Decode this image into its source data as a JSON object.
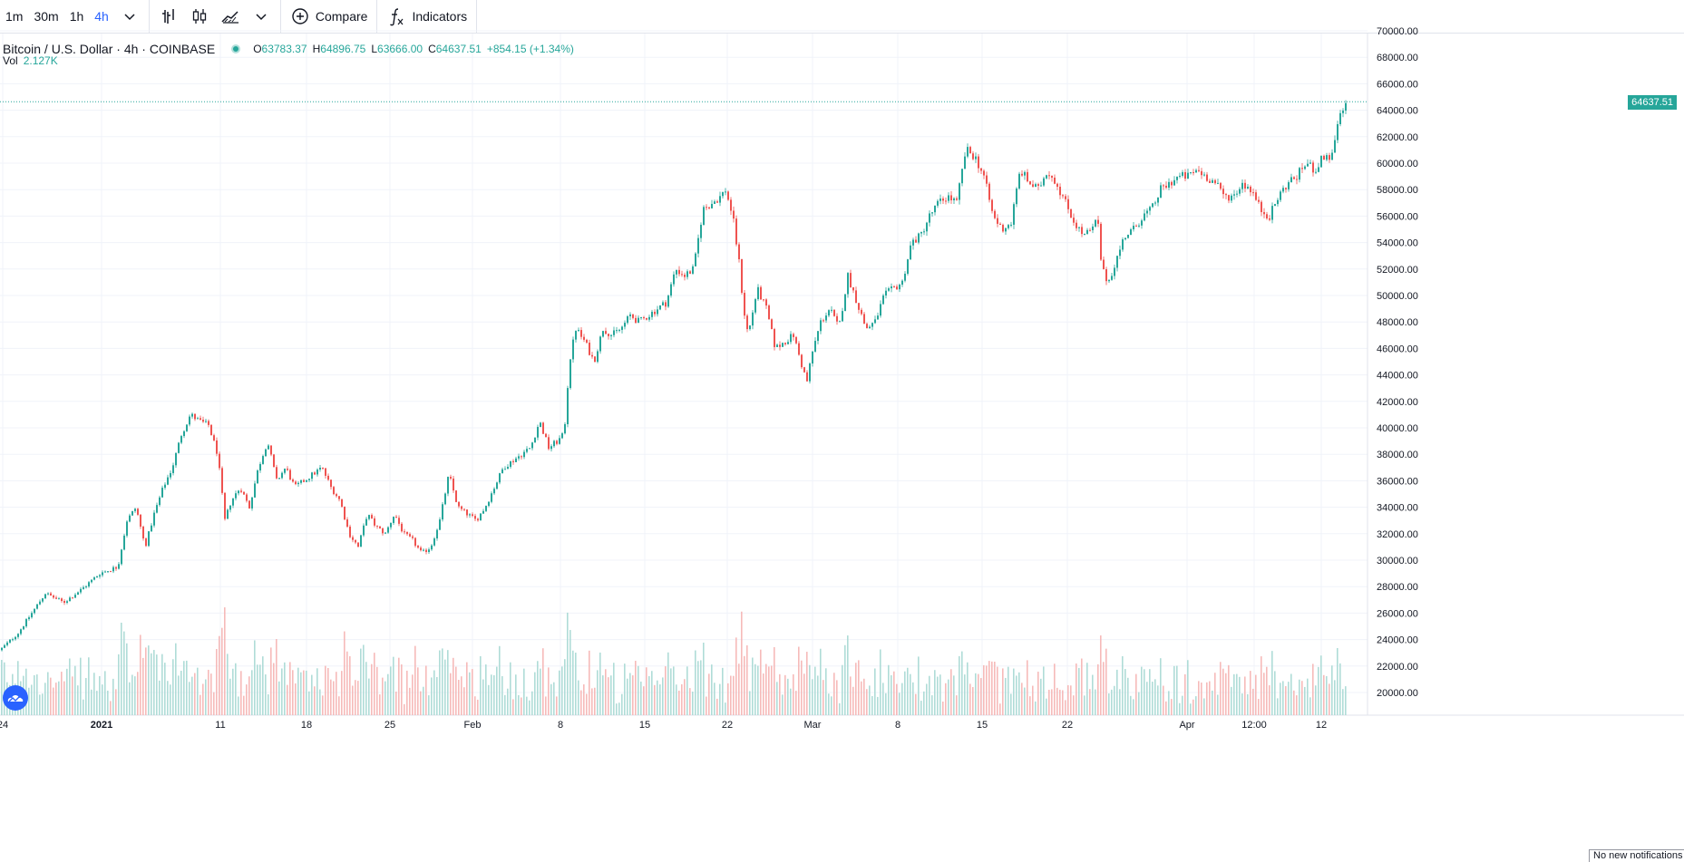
{
  "toolbar": {
    "intervals": [
      {
        "label": "1m",
        "active": false
      },
      {
        "label": "30m",
        "active": false
      },
      {
        "label": "1h",
        "active": false
      },
      {
        "label": "4h",
        "active": true
      }
    ],
    "compare_label": "Compare",
    "indicators_label": "Indicators"
  },
  "legend": {
    "symbol": "Bitcoin / U.S. Dollar · 4h · COINBASE",
    "open_label": "O",
    "open": "63783.37",
    "high_label": "H",
    "high": "64896.75",
    "low_label": "L",
    "low": "63666.00",
    "close_label": "C",
    "close": "64637.51",
    "change": "+854.15 (+1.34%)",
    "volume_label": "Vol",
    "volume": "2.127K"
  },
  "last_price": "64637.51",
  "price_axis_ticks": [
    "70000.00",
    "68000.00",
    "66000.00",
    "64000.00",
    "62000.00",
    "60000.00",
    "58000.00",
    "56000.00",
    "54000.00",
    "52000.00",
    "50000.00",
    "48000.00",
    "46000.00",
    "44000.00",
    "42000.00",
    "40000.00",
    "38000.00",
    "36000.00",
    "34000.00",
    "32000.00",
    "30000.00",
    "28000.00",
    "26000.00",
    "24000.00",
    "22000.00",
    "20000.00"
  ],
  "time_axis_ticks": [
    "24",
    "2021",
    "11",
    "18",
    "25",
    "Feb",
    "8",
    "15",
    "22",
    "Mar",
    "8",
    "15",
    "22",
    "Apr",
    "12:00",
    "12"
  ],
  "notification": "No new notifications",
  "colors": {
    "up": "#26a69a",
    "down": "#ef5350",
    "accent": "#2962ff"
  },
  "chart_data": {
    "type": "candlestick",
    "symbol": "BTCUSD",
    "interval": "4h",
    "ylim": [
      19000,
      70500
    ],
    "close_path": [
      [
        0,
        23200
      ],
      [
        20,
        24500
      ],
      [
        40,
        26500
      ],
      [
        50,
        27500
      ],
      [
        70,
        26800
      ],
      [
        90,
        27800
      ],
      [
        110,
        29000
      ],
      [
        130,
        29500
      ],
      [
        140,
        33000
      ],
      [
        150,
        34000
      ],
      [
        160,
        31000
      ],
      [
        170,
        33500
      ],
      [
        180,
        35500
      ],
      [
        190,
        37000
      ],
      [
        200,
        39500
      ],
      [
        210,
        41000
      ],
      [
        220,
        40500
      ],
      [
        230,
        40200
      ],
      [
        240,
        38000
      ],
      [
        248,
        33000
      ],
      [
        255,
        34500
      ],
      [
        265,
        35500
      ],
      [
        275,
        34000
      ],
      [
        285,
        37000
      ],
      [
        295,
        39000
      ],
      [
        305,
        36000
      ],
      [
        315,
        37000
      ],
      [
        325,
        35500
      ],
      [
        335,
        36000
      ],
      [
        345,
        36500
      ],
      [
        355,
        37000
      ],
      [
        365,
        35500
      ],
      [
        375,
        34500
      ],
      [
        385,
        32000
      ],
      [
        395,
        31000
      ],
      [
        405,
        33500
      ],
      [
        415,
        32500
      ],
      [
        425,
        32000
      ],
      [
        435,
        33500
      ],
      [
        445,
        32000
      ],
      [
        455,
        31500
      ],
      [
        465,
        30500
      ],
      [
        475,
        31000
      ],
      [
        485,
        33000
      ],
      [
        495,
        36500
      ],
      [
        505,
        34000
      ],
      [
        515,
        33500
      ],
      [
        525,
        33000
      ],
      [
        535,
        34000
      ],
      [
        545,
        35500
      ],
      [
        555,
        37000
      ],
      [
        565,
        37500
      ],
      [
        575,
        38000
      ],
      [
        585,
        38500
      ],
      [
        595,
        40500
      ],
      [
        605,
        38500
      ],
      [
        615,
        39000
      ],
      [
        622,
        39500
      ],
      [
        628,
        45000
      ],
      [
        635,
        47500
      ],
      [
        645,
        46500
      ],
      [
        655,
        45000
      ],
      [
        665,
        47500
      ],
      [
        675,
        47000
      ],
      [
        685,
        47500
      ],
      [
        695,
        48500
      ],
      [
        705,
        48000
      ],
      [
        715,
        48500
      ],
      [
        725,
        49000
      ],
      [
        735,
        49500
      ],
      [
        745,
        52000
      ],
      [
        755,
        51500
      ],
      [
        765,
        52000
      ],
      [
        775,
        56500
      ],
      [
        785,
        57000
      ],
      [
        795,
        57500
      ],
      [
        800,
        58000
      ],
      [
        808,
        56000
      ],
      [
        815,
        52500
      ],
      [
        820,
        49000
      ],
      [
        825,
        47000
      ],
      [
        835,
        50500
      ],
      [
        845,
        49000
      ],
      [
        855,
        46000
      ],
      [
        865,
        46500
      ],
      [
        875,
        47000
      ],
      [
        885,
        44500
      ],
      [
        890,
        43500
      ],
      [
        895,
        45500
      ],
      [
        905,
        48000
      ],
      [
        915,
        49000
      ],
      [
        925,
        47500
      ],
      [
        935,
        51500
      ],
      [
        945,
        49500
      ],
      [
        955,
        47500
      ],
      [
        965,
        48000
      ],
      [
        975,
        50000
      ],
      [
        985,
        50500
      ],
      [
        995,
        51000
      ],
      [
        1005,
        54000
      ],
      [
        1015,
        54500
      ],
      [
        1025,
        56000
      ],
      [
        1035,
        57000
      ],
      [
        1045,
        57500
      ],
      [
        1055,
        57000
      ],
      [
        1065,
        61000
      ],
      [
        1075,
        60500
      ],
      [
        1085,
        59000
      ],
      [
        1095,
        56000
      ],
      [
        1105,
        55000
      ],
      [
        1115,
        55500
      ],
      [
        1125,
        59500
      ],
      [
        1135,
        58500
      ],
      [
        1145,
        58000
      ],
      [
        1155,
        59500
      ],
      [
        1165,
        58500
      ],
      [
        1175,
        57000
      ],
      [
        1185,
        55500
      ],
      [
        1195,
        54500
      ],
      [
        1205,
        55000
      ],
      [
        1210,
        56000
      ],
      [
        1215,
        52000
      ],
      [
        1222,
        51000
      ],
      [
        1230,
        52500
      ],
      [
        1240,
        54500
      ],
      [
        1250,
        55000
      ],
      [
        1260,
        56000
      ],
      [
        1270,
        56500
      ],
      [
        1280,
        58000
      ],
      [
        1290,
        58500
      ],
      [
        1300,
        59000
      ],
      [
        1310,
        59000
      ],
      [
        1320,
        59500
      ],
      [
        1330,
        59000
      ],
      [
        1340,
        58500
      ],
      [
        1350,
        57500
      ],
      [
        1360,
        57500
      ],
      [
        1370,
        58500
      ],
      [
        1380,
        58000
      ],
      [
        1390,
        56500
      ],
      [
        1400,
        56000
      ],
      [
        1410,
        57500
      ],
      [
        1420,
        58500
      ],
      [
        1430,
        59000
      ],
      [
        1440,
        60000
      ],
      [
        1450,
        59500
      ],
      [
        1460,
        60500
      ],
      [
        1470,
        60500
      ],
      [
        1475,
        63000
      ],
      [
        1480,
        63800
      ],
      [
        1486,
        64637
      ]
    ],
    "volume_ylim": [
      0,
      3000
    ]
  }
}
